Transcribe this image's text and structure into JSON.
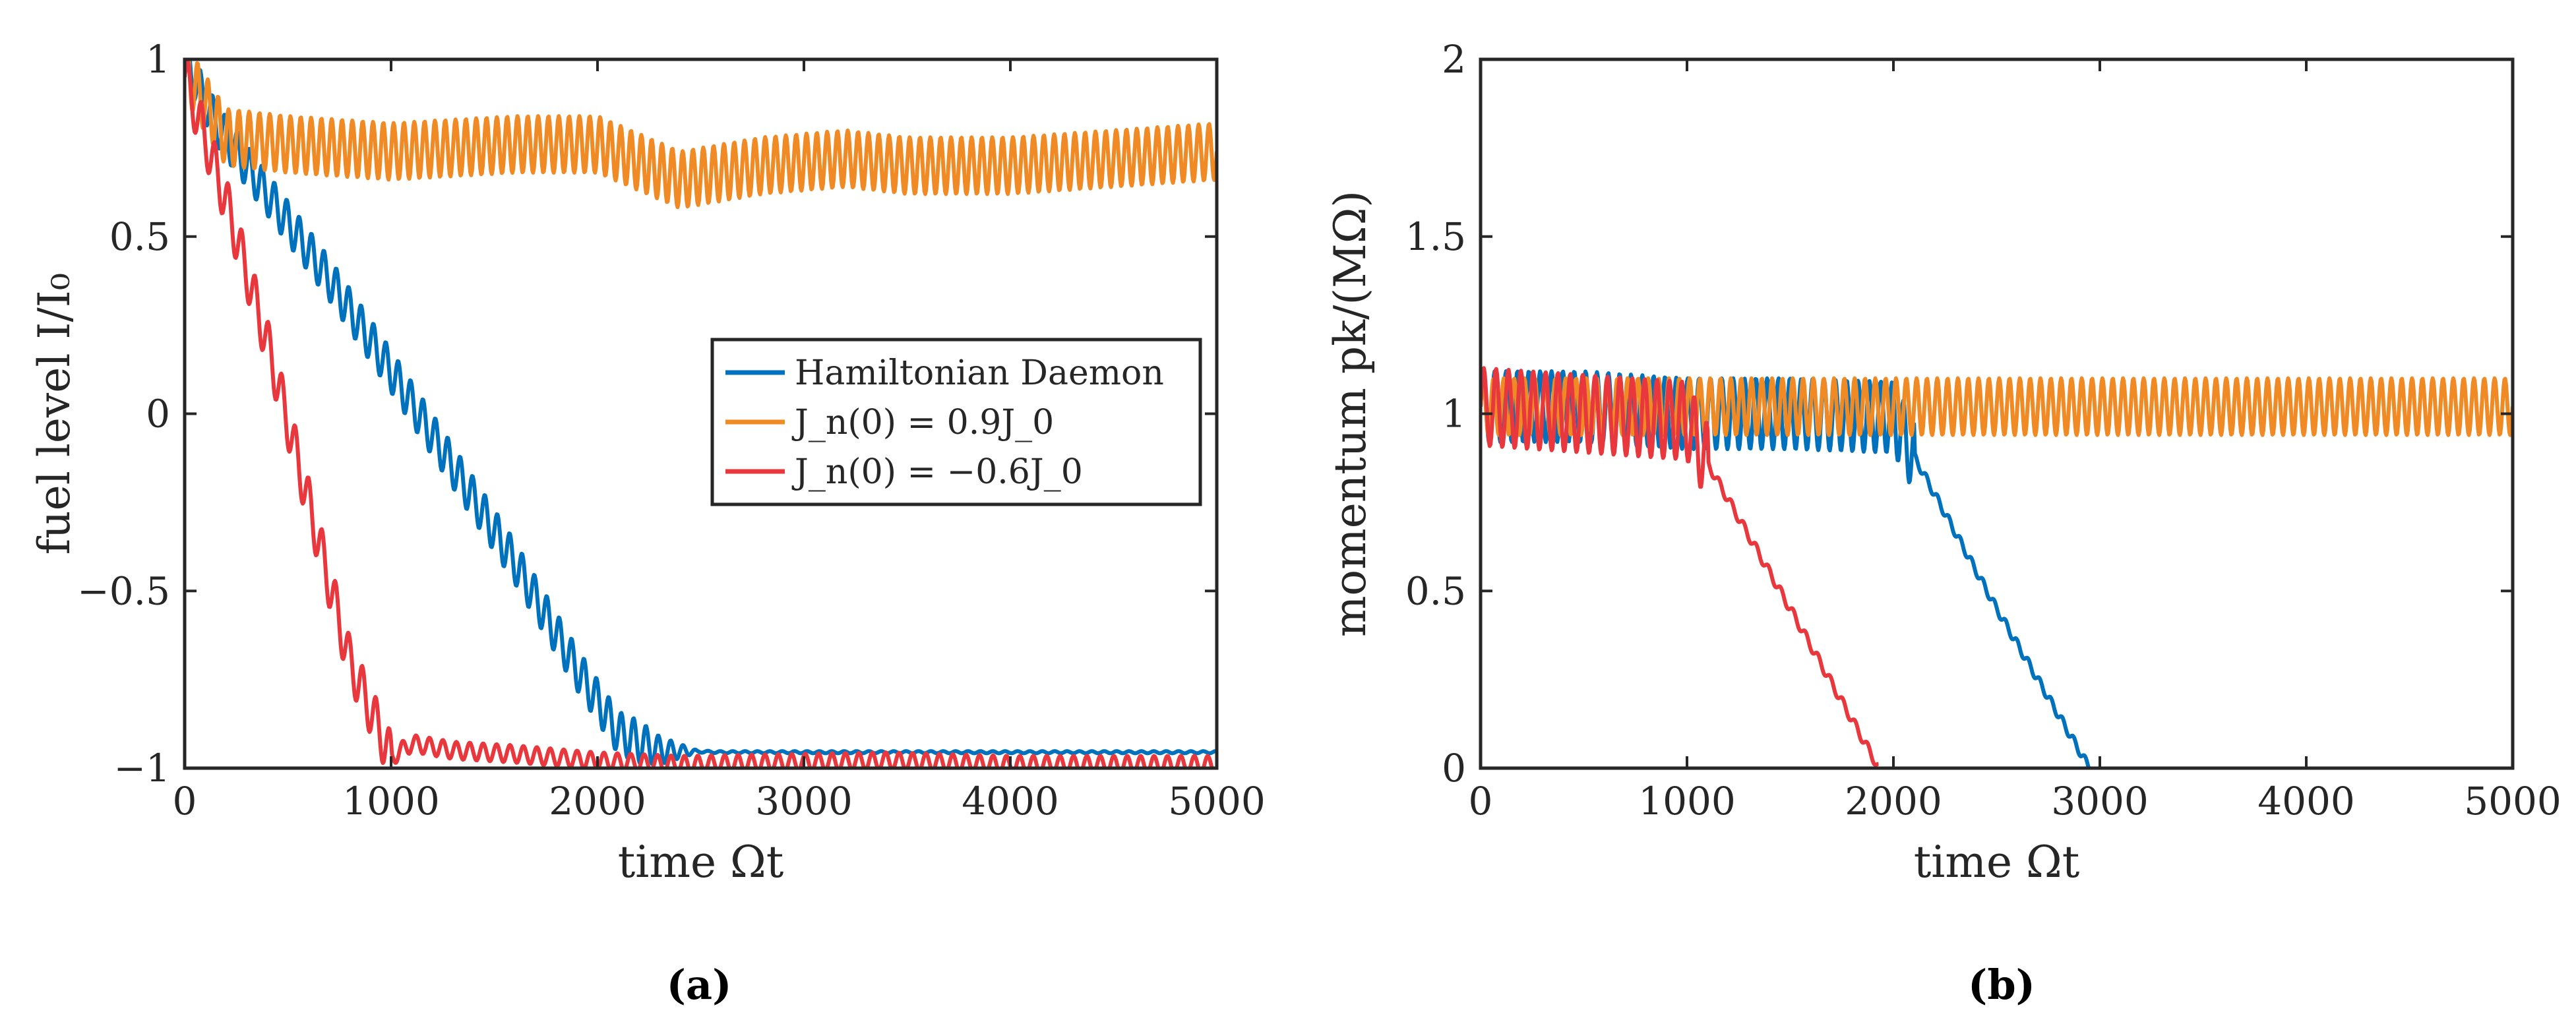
{
  "chart_data": [
    {
      "panel": "(a)",
      "type": "line",
      "title": "",
      "xlabel": "time Ωt",
      "ylabel": "fuel level I/I₀",
      "xlim": [
        0,
        5000
      ],
      "ylim": [
        -1,
        1
      ],
      "xticks": [
        "0",
        "1000",
        "2000",
        "3000",
        "4000",
        "5000"
      ],
      "yticks": [
        "−1",
        "−0.5",
        "0",
        "0.5",
        "1"
      ],
      "ytick_values": [
        -1,
        -0.5,
        0,
        0.5,
        1
      ],
      "legend_position": "center-right",
      "series": [
        {
          "name": "Hamiltonian Daemon",
          "color": "#0072bd",
          "oscillation": {
            "amplitude": 0.06,
            "period": 60
          },
          "points": [
            [
              0,
              1.0
            ],
            [
              150,
              0.82
            ],
            [
              400,
              0.62
            ],
            [
              700,
              0.38
            ],
            [
              1000,
              0.12
            ],
            [
              1300,
              -0.15
            ],
            [
              1600,
              -0.42
            ],
            [
              1900,
              -0.72
            ],
            [
              2100,
              -0.9
            ],
            [
              2300,
              -0.95
            ],
            [
              2600,
              -0.955
            ],
            [
              5000,
              -0.955
            ]
          ]
        },
        {
          "name": "J_n(0) = 0.9J_0",
          "color": "#edb120",
          "stroke": "#f08a24",
          "oscillation": {
            "amplitude": 0.08,
            "period": 50
          },
          "points": [
            [
              0,
              0.97
            ],
            [
              200,
              0.78
            ],
            [
              500,
              0.76
            ],
            [
              1000,
              0.74
            ],
            [
              1600,
              0.76
            ],
            [
              2000,
              0.76
            ],
            [
              2400,
              0.66
            ],
            [
              2800,
              0.7
            ],
            [
              3200,
              0.72
            ],
            [
              3500,
              0.7
            ],
            [
              4000,
              0.7
            ],
            [
              4500,
              0.72
            ],
            [
              5000,
              0.74
            ]
          ]
        },
        {
          "name": "J_n(0) = −0.6J_0",
          "color": "#e8383d",
          "oscillation": {
            "amplitude": 0.07,
            "period": 65
          },
          "points": [
            [
              0,
              0.95
            ],
            [
              200,
              0.6
            ],
            [
              400,
              0.2
            ],
            [
              600,
              -0.25
            ],
            [
              800,
              -0.7
            ],
            [
              1000,
              -0.97
            ],
            [
              1100,
              -0.93
            ],
            [
              1300,
              -0.95
            ],
            [
              1600,
              -0.96
            ],
            [
              2000,
              -0.98
            ],
            [
              2400,
              -0.99
            ],
            [
              3400,
              -0.98
            ],
            [
              4000,
              -0.99
            ],
            [
              5000,
              -0.99
            ]
          ]
        }
      ],
      "legend": [
        "Hamiltonian Daemon",
        "J_n(0) = 0.9J_0",
        "J_n(0) = −0.6J_0"
      ]
    },
    {
      "panel": "(b)",
      "type": "line",
      "title": "",
      "xlabel": "time Ωt",
      "ylabel": "momentum pk/(MΩ)",
      "xlim": [
        0,
        5000
      ],
      "ylim": [
        0,
        2
      ],
      "xticks": [
        "0",
        "1000",
        "2000",
        "3000",
        "4000",
        "5000"
      ],
      "yticks": [
        "0",
        "0.5",
        "1",
        "1.5",
        "2"
      ],
      "ytick_values": [
        0,
        0.5,
        1,
        1.5,
        2
      ],
      "series": [
        {
          "name": "Hamiltonian Daemon",
          "color": "#0072bd",
          "oscillation": {
            "amplitude": 0.1,
            "period": 55
          },
          "points": [
            [
              0,
              1.02
            ],
            [
              500,
              1.02
            ],
            [
              1000,
              1.0
            ],
            [
              1500,
              1.0
            ],
            [
              2000,
              0.99
            ],
            [
              2100,
              0.88
            ],
            [
              2500,
              0.45
            ],
            [
              2950,
              0.0
            ]
          ]
        },
        {
          "name": "J_n(0) = 0.9J_0",
          "color": "#f08a24",
          "oscillation": {
            "amplitude": 0.08,
            "period": 50
          },
          "points": [
            [
              0,
              1.02
            ],
            [
              1000,
              1.02
            ],
            [
              2000,
              1.02
            ],
            [
              3000,
              1.02
            ],
            [
              4000,
              1.02
            ],
            [
              5000,
              1.02
            ]
          ]
        },
        {
          "name": "J_n(0) = −0.6J_0",
          "color": "#e8383d",
          "oscillation": {
            "amplitude": 0.11,
            "period": 60
          },
          "points": [
            [
              0,
              1.02
            ],
            [
              500,
              1.0
            ],
            [
              1000,
              0.98
            ],
            [
              1100,
              0.86
            ],
            [
              1500,
              0.45
            ],
            [
              1930,
              0.0
            ]
          ]
        }
      ]
    }
  ],
  "panels": {
    "a_label": "(a)",
    "b_label": "(b)"
  }
}
